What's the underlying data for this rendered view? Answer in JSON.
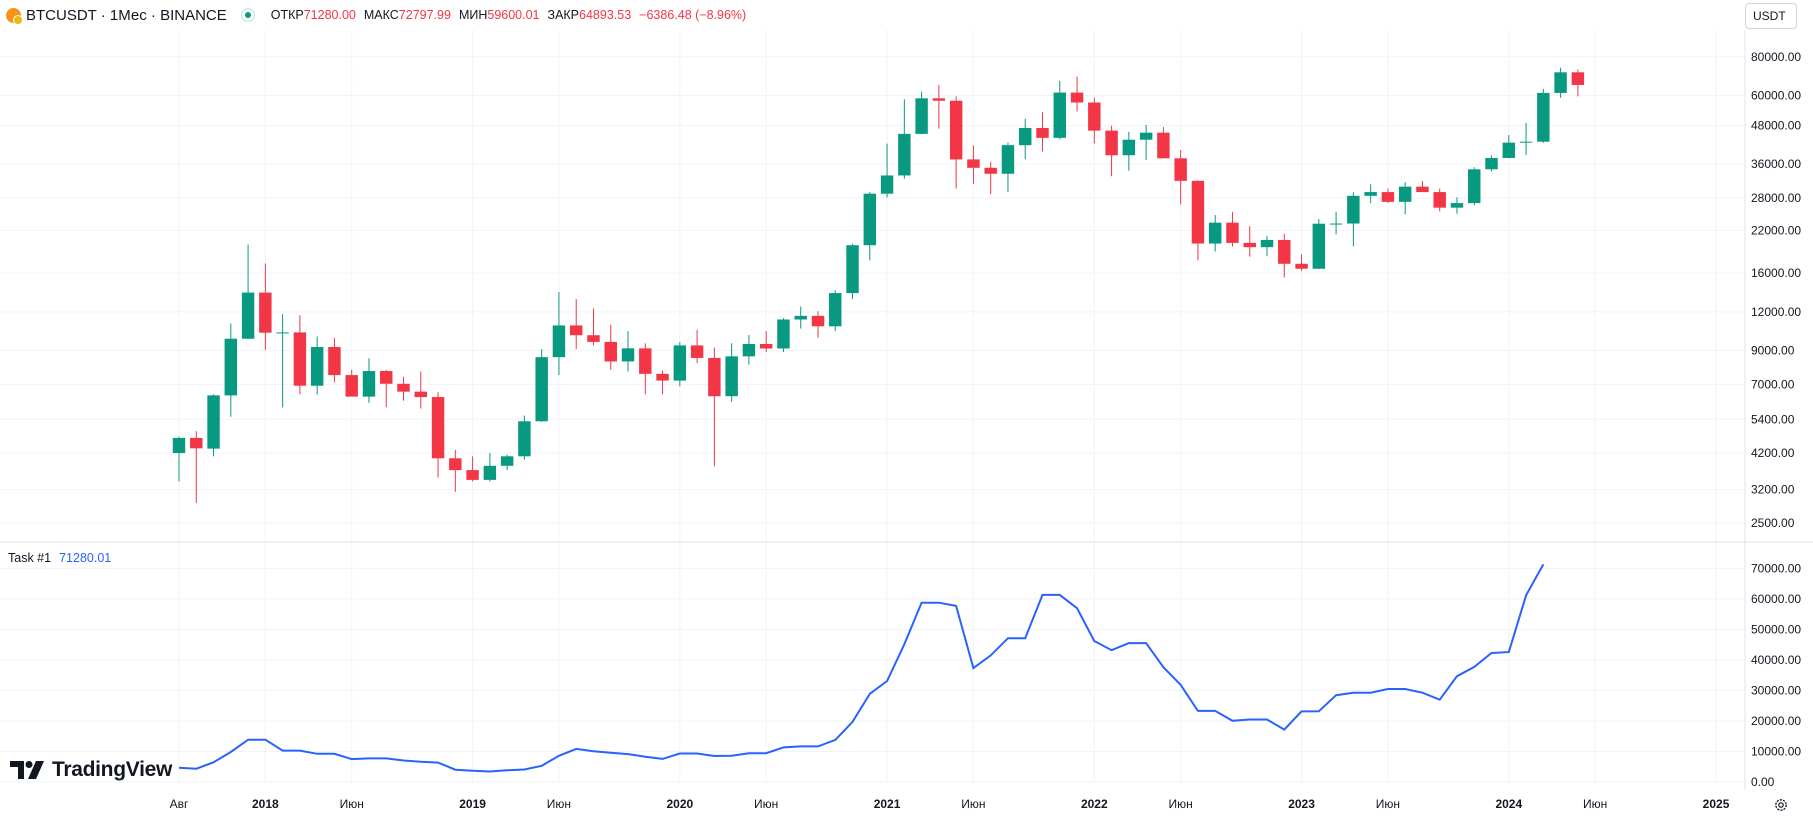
{
  "header": {
    "symbol_title": "BTCUSDT · 1Мес · BINANCE",
    "open_label": "ОТКР",
    "open_value": "71280.00",
    "high_label": "МАКС",
    "high_value": "72797.99",
    "low_label": "МИН",
    "low_value": "59600.01",
    "close_label": "ЗАКР",
    "close_value": "64893.53",
    "change_value": "−6386.48 (−8.96%)",
    "symbol_icon": "bitcoin-icon",
    "status_icon": "live-status-dot-icon"
  },
  "currency_button": "USDT",
  "indicator": {
    "name": "Task #1",
    "value": "71280.01"
  },
  "brand": "TradingView",
  "settings_icon": "gear-icon",
  "colors": {
    "up": "#089981",
    "down": "#f23645",
    "line": "#2962ff",
    "grid": "#f0f3fa",
    "text": "#131722"
  },
  "chart_data": [
    {
      "type": "candlestick",
      "scale": "log",
      "ylim": [
        2200,
        92000
      ],
      "y_ticks": [
        "80000.00",
        "60000.00",
        "48000.00",
        "36000.00",
        "28000.00",
        "22000.00",
        "16000.00",
        "12000.00",
        "9000.00",
        "7000.00",
        "5400.00",
        "4200.00",
        "3200.00",
        "2500.00"
      ],
      "x_ticks": [
        {
          "label": "Авг",
          "at": "2017-08",
          "bold": false
        },
        {
          "label": "2018",
          "at": "2018-01",
          "bold": true
        },
        {
          "label": "Июн",
          "at": "2018-06",
          "bold": false
        },
        {
          "label": "2019",
          "at": "2019-01",
          "bold": true
        },
        {
          "label": "Июн",
          "at": "2019-06",
          "bold": false
        },
        {
          "label": "2020",
          "at": "2020-01",
          "bold": true
        },
        {
          "label": "Июн",
          "at": "2020-06",
          "bold": false
        },
        {
          "label": "2021",
          "at": "2021-01",
          "bold": true
        },
        {
          "label": "Июн",
          "at": "2021-06",
          "bold": false
        },
        {
          "label": "2022",
          "at": "2022-01",
          "bold": true
        },
        {
          "label": "Июн",
          "at": "2022-06",
          "bold": false
        },
        {
          "label": "2023",
          "at": "2023-01",
          "bold": true
        },
        {
          "label": "Июн",
          "at": "2023-06",
          "bold": false
        },
        {
          "label": "2024",
          "at": "2024-01",
          "bold": true
        },
        {
          "label": "Июн",
          "at": "2024-06",
          "bold": false
        },
        {
          "label": "2025",
          "at": "2025-01",
          "bold": true
        }
      ],
      "first_period": "2017-08",
      "candles": [
        [
          4200,
          4750,
          3400,
          4700
        ],
        [
          4700,
          4940,
          2900,
          4350
        ],
        [
          4340,
          6500,
          4100,
          6450
        ],
        [
          6450,
          11000,
          5500,
          9830
        ],
        [
          9830,
          19800,
          9800,
          13850
        ],
        [
          13850,
          17200,
          9050,
          10280
        ],
        [
          10280,
          11800,
          5900,
          10300
        ],
        [
          10300,
          11700,
          6500,
          6930
        ],
        [
          6930,
          10000,
          6500,
          9240
        ],
        [
          9240,
          9900,
          7100,
          7500
        ],
        [
          7500,
          7800,
          6400,
          6390
        ],
        [
          6390,
          8500,
          6100,
          7730
        ],
        [
          7730,
          7800,
          5900,
          7030
        ],
        [
          7030,
          7400,
          6200,
          6630
        ],
        [
          6630,
          7700,
          5850,
          6370
        ],
        [
          6370,
          6600,
          3500,
          4040
        ],
        [
          4040,
          4300,
          3150,
          3700
        ],
        [
          3700,
          4100,
          3400,
          3440
        ],
        [
          3440,
          4200,
          3400,
          3820
        ],
        [
          3820,
          4150,
          3700,
          4100
        ],
        [
          4100,
          5550,
          4000,
          5320
        ],
        [
          5320,
          9100,
          5300,
          8570
        ],
        [
          8570,
          13900,
          7500,
          10850
        ],
        [
          10850,
          13200,
          9100,
          10090
        ],
        [
          10090,
          12300,
          9350,
          9600
        ],
        [
          9600,
          10900,
          7800,
          8300
        ],
        [
          8300,
          10400,
          7700,
          9150
        ],
        [
          9150,
          9500,
          6500,
          7570
        ],
        [
          7570,
          7750,
          6500,
          7200
        ],
        [
          7200,
          9600,
          6900,
          9350
        ],
        [
          9350,
          10500,
          8200,
          8520
        ],
        [
          8520,
          9200,
          3800,
          6410
        ],
        [
          6410,
          9500,
          6150,
          8620
        ],
        [
          8620,
          10100,
          8100,
          9450
        ],
        [
          9450,
          10400,
          8900,
          9140
        ],
        [
          9140,
          11450,
          8900,
          11340
        ],
        [
          11340,
          12480,
          10600,
          11650
        ],
        [
          11650,
          12050,
          9900,
          10780
        ],
        [
          10780,
          14100,
          10400,
          13800
        ],
        [
          13800,
          19900,
          13200,
          19700
        ],
        [
          19700,
          29300,
          17600,
          28900
        ],
        [
          28900,
          41950,
          28100,
          33100
        ],
        [
          33100,
          58350,
          32300,
          45100
        ],
        [
          45100,
          61800,
          45000,
          58750
        ],
        [
          58750,
          64850,
          46900,
          57700
        ],
        [
          57700,
          59600,
          30000,
          37300
        ],
        [
          37300,
          41350,
          31100,
          35040
        ],
        [
          35040,
          36650,
          28800,
          33520
        ],
        [
          33520,
          42300,
          29300,
          41460
        ],
        [
          41460,
          50500,
          37300,
          47100
        ],
        [
          47100,
          52950,
          39550,
          43790
        ],
        [
          43790,
          66950,
          43300,
          61300
        ],
        [
          61300,
          69000,
          53250,
          56950
        ],
        [
          56950,
          59050,
          42000,
          46200
        ],
        [
          46200,
          47950,
          32900,
          38470
        ],
        [
          38470,
          45800,
          34300,
          43180
        ],
        [
          43180,
          48200,
          37150,
          45500
        ],
        [
          45500,
          47450,
          37700,
          37600
        ],
        [
          37600,
          40000,
          26700,
          31800
        ],
        [
          31800,
          31950,
          17600,
          19950
        ],
        [
          19950,
          24650,
          18800,
          23300
        ],
        [
          23300,
          25200,
          19500,
          20050
        ],
        [
          20050,
          22700,
          18100,
          19420
        ],
        [
          19420,
          21100,
          18150,
          20490
        ],
        [
          20490,
          21450,
          15500,
          17160
        ],
        [
          17160,
          18400,
          16250,
          16540
        ],
        [
          16540,
          23950,
          16500,
          23120
        ],
        [
          23120,
          25250,
          21350,
          23150
        ],
        [
          23150,
          29200,
          19550,
          28450
        ],
        [
          28450,
          31000,
          26950,
          29250
        ],
        [
          29250,
          30050,
          26950,
          27200
        ],
        [
          27200,
          31450,
          24800,
          30450
        ],
        [
          30450,
          31800,
          29500,
          29250
        ],
        [
          29250,
          30000,
          25350,
          26050
        ],
        [
          26050,
          28150,
          24900,
          26950
        ],
        [
          26950,
          35200,
          26500,
          34650
        ],
        [
          34650,
          38450,
          34100,
          37700
        ],
        [
          37700,
          44700,
          37600,
          42250
        ],
        [
          42250,
          48950,
          38550,
          42550
        ],
        [
          42550,
          63000,
          42200,
          61150
        ],
        [
          61150,
          73800,
          59000,
          71280
        ],
        [
          71280,
          72800,
          59600,
          64890
        ]
      ]
    },
    {
      "type": "line",
      "series": [
        {
          "name": "Task #1",
          "values": [
            4700,
            4350,
            6450,
            9830,
            13850,
            13850,
            10280,
            10300,
            9240,
            9240,
            7500,
            7730,
            7730,
            7030,
            6630,
            6370,
            4040,
            3700,
            3440,
            3820,
            4100,
            5320,
            8570,
            10850,
            10090,
            9600,
            9150,
            8300,
            7570,
            9350,
            9350,
            8520,
            8620,
            9450,
            9450,
            11340,
            11650,
            11650,
            13800,
            19700,
            28900,
            33100,
            45100,
            58750,
            58750,
            57700,
            37300,
            41460,
            47100,
            47100,
            61300,
            61300,
            56950,
            46200,
            43180,
            45500,
            45500,
            37600,
            31800,
            23300,
            23300,
            20050,
            20490,
            20490,
            17160,
            23120,
            23150,
            28450,
            29250,
            29250,
            30450,
            30450,
            29250,
            26950,
            34650,
            37700,
            42250,
            42550,
            61150,
            71280
          ],
          "first_period": "2017-08"
        }
      ],
      "ylim": [
        0,
        76000
      ],
      "y_ticks": [
        "70000.00",
        "60000.00",
        "50000.00",
        "40000.00",
        "30000.00",
        "20000.00",
        "10000.00",
        "0.00"
      ]
    }
  ]
}
